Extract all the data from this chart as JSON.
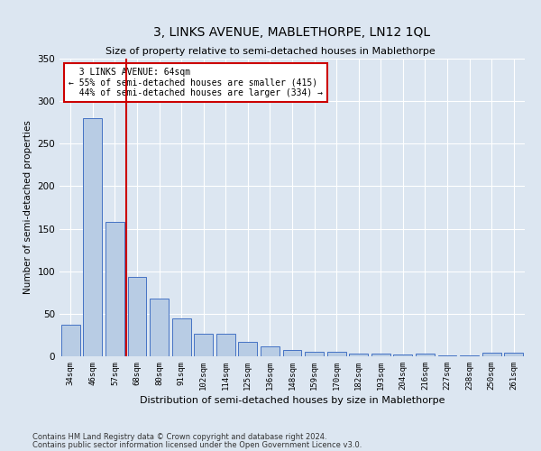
{
  "title": "3, LINKS AVENUE, MABLETHORPE, LN12 1QL",
  "subtitle": "Size of property relative to semi-detached houses in Mablethorpe",
  "xlabel": "Distribution of semi-detached houses by size in Mablethorpe",
  "ylabel": "Number of semi-detached properties",
  "categories": [
    "34sqm",
    "46sqm",
    "57sqm",
    "68sqm",
    "80sqm",
    "91sqm",
    "102sqm",
    "114sqm",
    "125sqm",
    "136sqm",
    "148sqm",
    "159sqm",
    "170sqm",
    "182sqm",
    "193sqm",
    "204sqm",
    "216sqm",
    "227sqm",
    "238sqm",
    "250sqm",
    "261sqm"
  ],
  "values": [
    37,
    280,
    158,
    93,
    68,
    45,
    27,
    27,
    17,
    12,
    7,
    5,
    5,
    3,
    3,
    2,
    3,
    1,
    1,
    4,
    4
  ],
  "bar_color": "#b8cce4",
  "bar_edge_color": "#4472c4",
  "vline_color": "#cc0000",
  "vline_x": 2.5,
  "annotation_text": "  3 LINKS AVENUE: 64sqm\n← 55% of semi-detached houses are smaller (415)\n  44% of semi-detached houses are larger (334) →",
  "annotation_box_color": "#ffffff",
  "annotation_box_edge": "#cc0000",
  "ylim": [
    0,
    350
  ],
  "yticks": [
    0,
    50,
    100,
    150,
    200,
    250,
    300,
    350
  ],
  "footer_line1": "Contains HM Land Registry data © Crown copyright and database right 2024.",
  "footer_line2": "Contains public sector information licensed under the Open Government Licence v3.0.",
  "bg_color": "#dce6f1",
  "plot_bg_color": "#dce6f1",
  "title_fontsize": 10,
  "subtitle_fontsize": 8,
  "xlabel_fontsize": 8,
  "ylabel_fontsize": 7.5
}
